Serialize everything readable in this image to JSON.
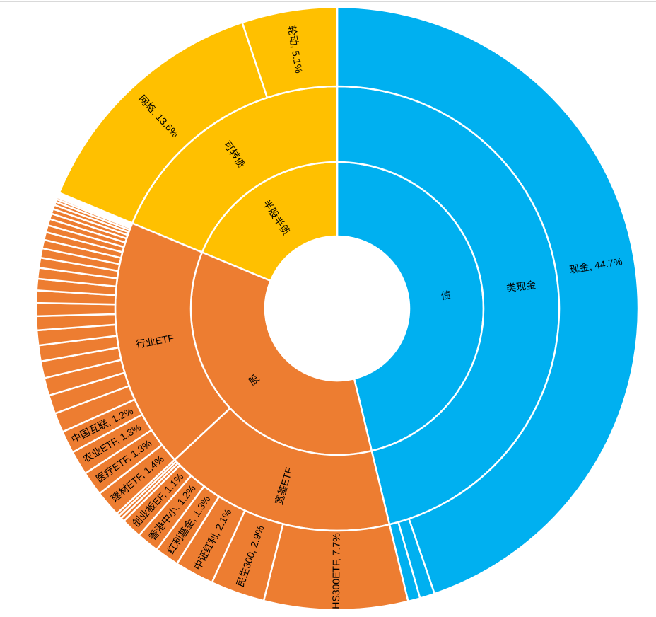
{
  "chart_data": {
    "type": "sunburst",
    "unit": "percent-of-total",
    "background_color": "#ffffff",
    "divider_color": "#ffffff",
    "label_color": "#000000",
    "legend": "none",
    "rings": [
      "level-1-asset-class",
      "level-2-category",
      "level-3-holding"
    ],
    "palette": {
      "bond_blue": "#00b0f0",
      "stock_orange": "#ed7d31",
      "mixed_yellow": "#ffc000"
    },
    "start_angle_deg": 0,
    "direction": "clockwise",
    "hierarchy": [
      {
        "name": "债",
        "color": "#00b0f0",
        "children": [
          {
            "name": "类现金",
            "children": [
              {
                "name": "现金",
                "value": 44.7,
                "label": "现金, 44.7%"
              },
              {
                "name": "",
                "value": 0.8
              },
              {
                "name": "",
                "value": 0.65
              }
            ]
          }
        ]
      },
      {
        "name": "股",
        "color": "#ed7d31",
        "children": [
          {
            "name": "宽基ETF",
            "children": [
              {
                "name": "HS300ETF",
                "value": 7.7,
                "label": "HS300ETF, 7.7%"
              },
              {
                "name": "民生300",
                "value": 2.9,
                "label": "民生300, 2.9%"
              },
              {
                "name": "中证红利",
                "value": 2.1,
                "label": "中证红利, 2.1%"
              },
              {
                "name": "红利基金",
                "value": 1.3,
                "label": "红利基金, 1.3%"
              },
              {
                "name": "香港中小",
                "value": 1.2,
                "label": "香港中小, 1.2%"
              },
              {
                "name": "创业板EF",
                "value": 1.1,
                "label": "创业板EF, 1.1%"
              },
              {
                "name": "",
                "value": 0.2
              },
              {
                "name": "",
                "value": 0.18
              },
              {
                "name": "",
                "value": 0.16
              }
            ]
          },
          {
            "name": "行业ETF",
            "children": [
              {
                "name": "建材ETF",
                "value": 1.4,
                "label": "建材ETF, 1.4%"
              },
              {
                "name": "医疗ETF",
                "value": 1.3,
                "label": "医疗ETF, 1.3%"
              },
              {
                "name": "农业ETF",
                "value": 1.3,
                "label": "农业ETF, 1.3%"
              },
              {
                "name": "中国互联",
                "value": 1.2,
                "label": "中国互联, 1.2%"
              },
              {
                "name": "",
                "value": 1.05
              },
              {
                "name": "",
                "value": 1.0
              },
              {
                "name": "",
                "value": 0.95
              },
              {
                "name": "",
                "value": 0.9
              },
              {
                "name": "",
                "value": 0.85
              },
              {
                "name": "",
                "value": 0.8
              },
              {
                "name": "",
                "value": 0.75
              },
              {
                "name": "",
                "value": 0.7
              },
              {
                "name": "",
                "value": 0.66
              },
              {
                "name": "",
                "value": 0.62
              },
              {
                "name": "",
                "value": 0.58
              },
              {
                "name": "",
                "value": 0.54
              },
              {
                "name": "",
                "value": 0.5
              },
              {
                "name": "",
                "value": 0.46
              },
              {
                "name": "",
                "value": 0.42
              },
              {
                "name": "",
                "value": 0.38
              },
              {
                "name": "",
                "value": 0.34
              },
              {
                "name": "",
                "value": 0.3
              },
              {
                "name": "",
                "value": 0.26
              },
              {
                "name": "",
                "value": 0.22
              },
              {
                "name": "",
                "value": 0.18
              },
              {
                "name": "",
                "value": 0.14
              },
              {
                "name": "",
                "value": 0.11
              },
              {
                "name": "",
                "value": 0.08
              },
              {
                "name": "",
                "value": 0.06
              },
              {
                "name": "",
                "value": 0.05
              },
              {
                "name": "",
                "value": 0.04
              },
              {
                "name": "",
                "value": 0.03
              }
            ]
          }
        ]
      },
      {
        "name": "半股半债",
        "color": "#ffc000",
        "children": [
          {
            "name": "可转债",
            "children": [
              {
                "name": "网格",
                "value": 13.6,
                "label": "网格, 13.6%"
              },
              {
                "name": "轮动",
                "value": 5.1,
                "label": "轮动, 5.1%"
              }
            ]
          }
        ]
      }
    ]
  }
}
